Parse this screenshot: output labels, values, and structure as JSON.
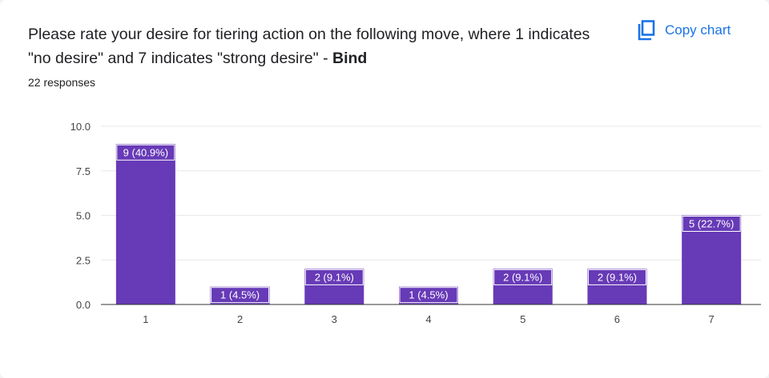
{
  "question": {
    "text": "Please rate your desire for tiering action on the following move, where 1 indicates \"no desire\" and 7 indicates \"strong desire\" - ",
    "move": "Bind"
  },
  "responses_label": "22 responses",
  "copy_button": {
    "label": "Copy chart",
    "icon": "copy-icon"
  },
  "colors": {
    "bar": "#673ab7",
    "accent": "#1a73e8",
    "grid": "#e8e8e8",
    "axis": "#333333"
  },
  "chart_data": {
    "type": "bar",
    "categories": [
      "1",
      "2",
      "3",
      "4",
      "5",
      "6",
      "7"
    ],
    "values": [
      9,
      1,
      2,
      1,
      2,
      2,
      5
    ],
    "data_labels": [
      "9 (40.9%)",
      "1 (4.5%)",
      "2 (9.1%)",
      "1 (4.5%)",
      "2 (9.1%)",
      "2 (9.1%)",
      "5 (22.7%)"
    ],
    "yticks": [
      "0.0",
      "2.5",
      "5.0",
      "7.5",
      "10.0"
    ],
    "ylim": [
      0,
      10
    ],
    "grid": true,
    "title": "",
    "xlabel": "",
    "ylabel": ""
  }
}
